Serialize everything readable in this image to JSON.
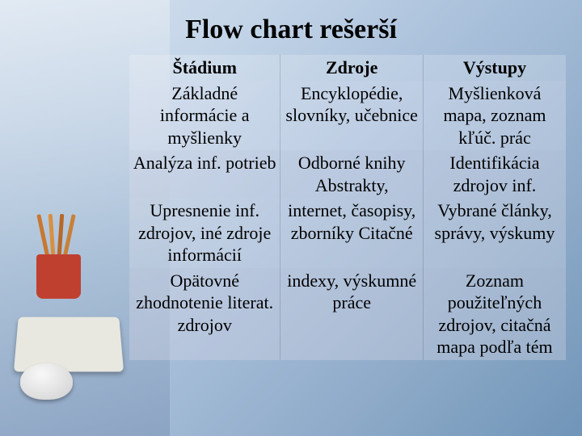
{
  "title": "Flow chart rešerší",
  "headers": [
    "Štádium",
    "Zdroje",
    "Výstupy"
  ],
  "rows": [
    [
      "Základné informácie a myšlienky",
      "Encyklopédie, slovníky, učebnice",
      "Myšlienková mapa, zoznam kľúč. prác"
    ],
    [
      "Analýza inf. potrieb",
      "Odborné knihy Abstrakty,",
      "Identifikácia zdrojov inf."
    ],
    [
      "Upresnenie inf. zdrojov, iné zdroje informácií",
      "internet, časopisy, zborníky Citačné",
      "Vybrané články, správy, výskumy"
    ],
    [
      "Opätovné zhodnotenie literat. zdrojov",
      "indexy, výskumné práce",
      "Zoznam použiteľných zdrojov, citačná mapa podľa tém"
    ]
  ],
  "styling": {
    "title_fontsize": 34,
    "cell_fontsize": 22,
    "font_family": "Times New Roman",
    "text_color": "#000000",
    "bg_gradient": [
      "#d8e4f0",
      "#c4d5e8",
      "#a8bfda",
      "#8fabc9",
      "#7095b8"
    ]
  }
}
